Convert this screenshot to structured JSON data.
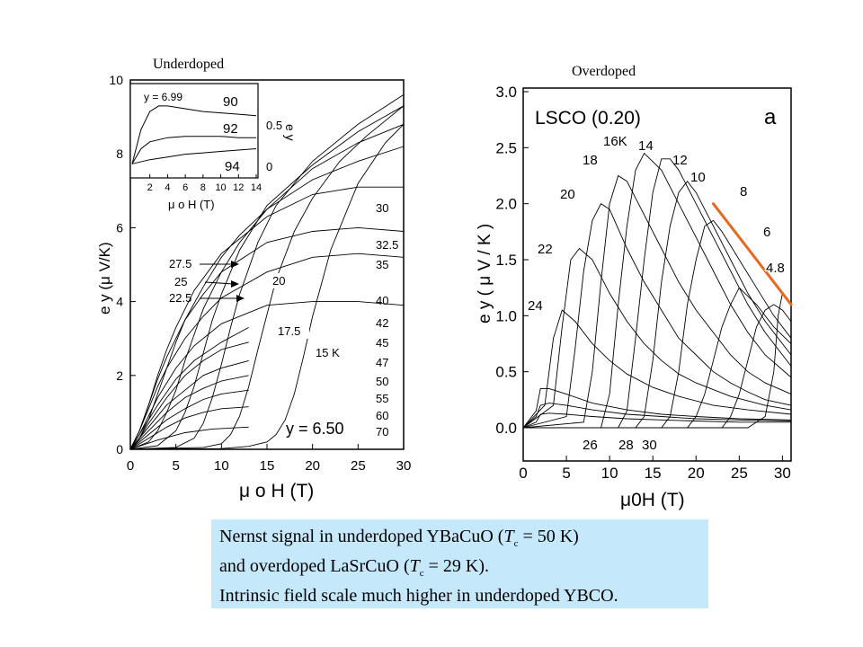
{
  "panel_titles": {
    "left": "Underdoped",
    "right": "Overdoped"
  },
  "caption": {
    "line1_a": "Nernst signal in underdoped YBaCuO (",
    "line1_T": "T",
    "line1_sub": "c",
    "line1_b": " = 50 K)",
    "line2_a": "and overdoped LaSrCuO (",
    "line2_T": "T",
    "line2_sub": "c",
    "line2_b": " = 29 K).",
    "line3": "Intrinsic field scale much higher in underdoped YBCO."
  },
  "chart_data": [
    {
      "type": "line",
      "xlabel": "μ o H (T)",
      "ylabel": "e y (μ V/K)",
      "xlim": [
        0,
        30
      ],
      "ylim": [
        0,
        10
      ],
      "xticks": [
        0,
        5,
        10,
        15,
        20,
        25,
        30
      ],
      "yticks": [
        0,
        2,
        4,
        6,
        8,
        10
      ],
      "annotation": "y = 6.50",
      "temperature_labels": [
        "30",
        "32.5",
        "35",
        "40",
        "42",
        "45",
        "47",
        "50",
        "55",
        "60",
        "70"
      ],
      "inner_labels": [
        "20",
        "17.5",
        "15 K"
      ],
      "arrow_labels": [
        "27.5",
        "25",
        "22.5"
      ],
      "series": [
        {
          "name": "15 K",
          "x": [
            0,
            10,
            13,
            15,
            16,
            17,
            18,
            19,
            20,
            22,
            25,
            28,
            30
          ],
          "y": [
            0,
            0.02,
            0.08,
            0.2,
            0.4,
            0.8,
            1.5,
            2.5,
            3.6,
            5.4,
            7.2,
            8.3,
            8.8
          ]
        },
        {
          "name": "17.5",
          "x": [
            0,
            8,
            10,
            11,
            12,
            13,
            14,
            16,
            18,
            20,
            23,
            26,
            30
          ],
          "y": [
            0,
            0.05,
            0.15,
            0.4,
            0.9,
            1.7,
            2.7,
            4.6,
            5.9,
            6.8,
            7.8,
            8.5,
            9.3
          ]
        },
        {
          "name": "20",
          "x": [
            0,
            5,
            7,
            8,
            9,
            10,
            11,
            12,
            14,
            16,
            20,
            25,
            30
          ],
          "y": [
            0,
            0.05,
            0.3,
            0.7,
            1.4,
            2.3,
            3.3,
            4.2,
            5.6,
            6.6,
            7.8,
            8.8,
            9.6
          ]
        },
        {
          "name": "22.5",
          "x": [
            0,
            3,
            5,
            6,
            7,
            8,
            9,
            10,
            12,
            15,
            20,
            25,
            30
          ],
          "y": [
            0,
            0.1,
            0.5,
            1.0,
            1.7,
            2.6,
            3.5,
            4.2,
            5.4,
            6.6,
            7.7,
            8.6,
            9.3
          ]
        },
        {
          "name": "25",
          "x": [
            0,
            2,
            3,
            4,
            5,
            6,
            7,
            8,
            10,
            12,
            15,
            20,
            25,
            30
          ],
          "y": [
            0,
            0.2,
            0.5,
            1.0,
            1.6,
            2.4,
            3.1,
            3.8,
            4.8,
            5.6,
            6.5,
            7.6,
            8.3,
            8.8
          ]
        },
        {
          "name": "27.5",
          "x": [
            0,
            1,
            2,
            3,
            4,
            5,
            6,
            8,
            10,
            12,
            15,
            20,
            25,
            30
          ],
          "y": [
            0,
            0.3,
            0.8,
            1.5,
            2.2,
            2.9,
            3.5,
            4.4,
            5.2,
            5.8,
            6.5,
            7.3,
            7.8,
            8.2
          ]
        },
        {
          "name": "30",
          "x": [
            0,
            1,
            2,
            3,
            4,
            5,
            7,
            10,
            15,
            20,
            25,
            30
          ],
          "y": [
            0,
            0.5,
            1.2,
            2.0,
            2.7,
            3.3,
            4.3,
            5.3,
            6.3,
            6.9,
            7.1,
            7.1
          ]
        },
        {
          "name": "32.5",
          "x": [
            0,
            1,
            2,
            3,
            4,
            6,
            8,
            10,
            15,
            20,
            25,
            30
          ],
          "y": [
            0,
            0.5,
            1.2,
            1.9,
            2.5,
            3.5,
            4.2,
            4.8,
            5.6,
            5.9,
            6.0,
            5.9
          ]
        },
        {
          "name": "35",
          "x": [
            0,
            1,
            2,
            3,
            4,
            6,
            8,
            10,
            15,
            20,
            25,
            30
          ],
          "y": [
            0,
            0.5,
            1.1,
            1.7,
            2.2,
            3.0,
            3.6,
            4.1,
            4.8,
            5.2,
            5.3,
            5.2
          ]
        },
        {
          "name": "40",
          "x": [
            0,
            1,
            2,
            3,
            5,
            7,
            10,
            15,
            20,
            25,
            30
          ],
          "y": [
            0,
            0.4,
            0.9,
            1.4,
            2.2,
            2.8,
            3.4,
            3.9,
            4.0,
            4.0,
            3.9
          ]
        },
        {
          "name": "42",
          "x": [
            0,
            1,
            2,
            3,
            5,
            7,
            10,
            13
          ],
          "y": [
            0,
            0.4,
            0.8,
            1.2,
            1.9,
            2.4,
            2.9,
            3.3
          ]
        },
        {
          "name": "45",
          "x": [
            0,
            1,
            2,
            4,
            6,
            8,
            10,
            13
          ],
          "y": [
            0,
            0.3,
            0.7,
            1.4,
            2.0,
            2.4,
            2.7,
            2.9
          ]
        },
        {
          "name": "47",
          "x": [
            0,
            1,
            2,
            4,
            6,
            8,
            10,
            13
          ],
          "y": [
            0,
            0.3,
            0.6,
            1.2,
            1.6,
            2.0,
            2.2,
            2.4
          ]
        },
        {
          "name": "50",
          "x": [
            0,
            1,
            2,
            4,
            6,
            8,
            10,
            13
          ],
          "y": [
            0,
            0.25,
            0.5,
            1.0,
            1.4,
            1.65,
            1.85,
            2.0
          ]
        },
        {
          "name": "55",
          "x": [
            0,
            2,
            4,
            6,
            8,
            10,
            13
          ],
          "y": [
            0,
            0.4,
            0.8,
            1.1,
            1.35,
            1.5,
            1.6
          ]
        },
        {
          "name": "60",
          "x": [
            0,
            2,
            4,
            6,
            8,
            10,
            13
          ],
          "y": [
            0,
            0.3,
            0.6,
            0.85,
            1.0,
            1.1,
            1.15
          ]
        },
        {
          "name": "70",
          "x": [
            0,
            3,
            6,
            9,
            13
          ],
          "y": [
            0,
            0.25,
            0.45,
            0.55,
            0.6
          ]
        }
      ]
    },
    {
      "type": "line",
      "inset": true,
      "xlabel": "μ o H (T)",
      "ylabel": "e y",
      "xlim": [
        0,
        14
      ],
      "xticks": [
        2,
        4,
        6,
        8,
        10,
        12,
        14
      ],
      "right_ticks": [
        "0.5",
        "0"
      ],
      "annotation": "y = 6.99",
      "series": [
        {
          "name": "90",
          "x": [
            0,
            1,
            2,
            3,
            4,
            6,
            8,
            10,
            12,
            14
          ],
          "y": [
            0.05,
            0.3,
            0.43,
            0.47,
            0.47,
            0.45,
            0.43,
            0.42,
            0.41,
            0.4
          ]
        },
        {
          "name": "92",
          "x": [
            0,
            1,
            2,
            4,
            6,
            8,
            10,
            12,
            14
          ],
          "y": [
            0.05,
            0.16,
            0.21,
            0.24,
            0.25,
            0.25,
            0.25,
            0.24,
            0.24
          ]
        },
        {
          "name": "94",
          "x": [
            0,
            2,
            4,
            6,
            8,
            10,
            12,
            14
          ],
          "y": [
            0.05,
            0.08,
            0.1,
            0.12,
            0.13,
            0.14,
            0.15,
            0.16
          ]
        }
      ]
    },
    {
      "type": "line",
      "title": "LSCO (0.20)",
      "panel_letter": "a",
      "xlabel": "μ0H (T)",
      "ylabel": "e y ( μ V / K )",
      "xlim": [
        0,
        31
      ],
      "ylim": [
        -0.3,
        3.0
      ],
      "xticks": [
        0,
        5,
        10,
        15,
        20,
        25,
        30
      ],
      "yticks": [
        0.0,
        0.5,
        1.0,
        1.5,
        2.0,
        2.5,
        3.0
      ],
      "ytick_labels": [
        "0.0",
        "0.5",
        "1.0",
        "1.5",
        "2.0",
        "2.5",
        "3.0"
      ],
      "temperature_labels": [
        "16K",
        "14",
        "18",
        "12",
        "10",
        "20",
        "8",
        "6",
        "22",
        "4.8",
        "24",
        "26",
        "28",
        "30"
      ],
      "fit_line": {
        "x": [
          22,
          31
        ],
        "y": [
          2.0,
          1.1
        ],
        "color": "#e8681e"
      },
      "series": [
        {
          "name": "4.8",
          "x": [
            0,
            26,
            28,
            29,
            29.5,
            30,
            31
          ],
          "y": [
            0,
            0.0,
            0.1,
            0.5,
            1.0,
            1.2,
            1.1
          ]
        },
        {
          "name": "6",
          "x": [
            0,
            23,
            24,
            25,
            26,
            27,
            28,
            29,
            30,
            31
          ],
          "y": [
            0,
            0.0,
            0.1,
            0.3,
            0.6,
            0.9,
            1.05,
            1.1,
            1.05,
            0.95
          ]
        },
        {
          "name": "8",
          "x": [
            0,
            19,
            20,
            21,
            22,
            23,
            24,
            25,
            27,
            29,
            31
          ],
          "y": [
            0,
            0.0,
            0.1,
            0.3,
            0.6,
            0.9,
            1.1,
            1.25,
            1.1,
            0.9,
            0.75
          ]
        },
        {
          "name": "10",
          "x": [
            0,
            16,
            17,
            18,
            19,
            20,
            21,
            22,
            23,
            25,
            27,
            29,
            31
          ],
          "y": [
            0,
            0.0,
            0.1,
            0.5,
            1.1,
            1.5,
            1.8,
            1.85,
            1.75,
            1.5,
            1.25,
            1.0,
            0.8
          ]
        },
        {
          "name": "12",
          "x": [
            0,
            13,
            14,
            15,
            16,
            17,
            18,
            19,
            20,
            22,
            24,
            26,
            28,
            31
          ],
          "y": [
            0,
            0.0,
            0.1,
            0.6,
            1.3,
            1.8,
            2.1,
            2.2,
            2.1,
            1.8,
            1.5,
            1.2,
            0.95,
            0.65
          ]
        },
        {
          "name": "14",
          "x": [
            0,
            11,
            12,
            13,
            14,
            15,
            16,
            17,
            18,
            20,
            22,
            24,
            26,
            28,
            31
          ],
          "y": [
            0,
            0.0,
            0.15,
            0.8,
            1.5,
            2.1,
            2.4,
            2.4,
            2.3,
            2.0,
            1.7,
            1.4,
            1.1,
            0.85,
            0.55
          ]
        },
        {
          "name": "16K",
          "x": [
            0,
            9,
            10,
            11,
            12,
            13,
            14,
            16,
            18,
            20,
            22,
            24,
            26,
            28,
            31
          ],
          "y": [
            0,
            0.0,
            0.3,
            1.1,
            1.8,
            2.3,
            2.45,
            2.3,
            2.0,
            1.7,
            1.4,
            1.1,
            0.85,
            0.65,
            0.45
          ]
        },
        {
          "name": "18",
          "x": [
            0,
            7,
            8,
            9,
            10,
            11,
            12,
            14,
            16,
            18,
            20,
            22,
            24,
            26,
            28,
            31
          ],
          "y": [
            0,
            0.05,
            0.5,
            1.3,
            2.0,
            2.25,
            2.2,
            1.9,
            1.6,
            1.3,
            1.05,
            0.85,
            0.65,
            0.5,
            0.4,
            0.3
          ]
        },
        {
          "name": "20",
          "x": [
            0,
            5,
            6,
            7,
            8,
            9,
            10,
            12,
            14,
            16,
            18,
            20,
            22,
            24,
            26,
            28,
            31
          ],
          "y": [
            0,
            0.1,
            0.7,
            1.4,
            1.85,
            2.0,
            1.95,
            1.6,
            1.3,
            1.05,
            0.8,
            0.65,
            0.5,
            0.4,
            0.32,
            0.25,
            0.2
          ]
        },
        {
          "name": "22",
          "x": [
            0,
            3.5,
            4.5,
            5.5,
            6.5,
            8,
            10,
            12,
            14,
            16,
            18,
            20,
            24,
            28,
            31
          ],
          "y": [
            0,
            0.2,
            0.9,
            1.5,
            1.6,
            1.5,
            1.2,
            0.95,
            0.75,
            0.6,
            0.48,
            0.4,
            0.28,
            0.2,
            0.16
          ]
        },
        {
          "name": "24",
          "x": [
            0,
            2.5,
            3.5,
            4.5,
            6,
            8,
            10,
            12,
            15,
            18,
            22,
            26,
            31
          ],
          "y": [
            0,
            0.2,
            0.8,
            1.05,
            0.95,
            0.75,
            0.6,
            0.48,
            0.36,
            0.28,
            0.2,
            0.16,
            0.12
          ]
        },
        {
          "name": "26",
          "x": [
            0,
            1.5,
            2,
            3,
            5,
            8,
            12,
            16,
            20,
            25,
            31
          ],
          "y": [
            0,
            0.15,
            0.35,
            0.35,
            0.3,
            0.22,
            0.16,
            0.12,
            0.1,
            0.08,
            0.07
          ]
        },
        {
          "name": "28",
          "x": [
            0,
            1.5,
            2,
            3,
            5,
            8,
            12,
            16,
            20,
            25,
            31
          ],
          "y": [
            0,
            0.1,
            0.2,
            0.22,
            0.2,
            0.16,
            0.12,
            0.1,
            0.08,
            0.07,
            0.06
          ]
        },
        {
          "name": "30",
          "x": [
            0,
            1.5,
            2,
            3,
            5,
            8,
            12,
            16,
            20,
            25,
            31
          ],
          "y": [
            0,
            0.05,
            0.12,
            0.13,
            0.12,
            0.1,
            0.08,
            0.07,
            0.06,
            0.05,
            0.05
          ]
        }
      ]
    }
  ]
}
